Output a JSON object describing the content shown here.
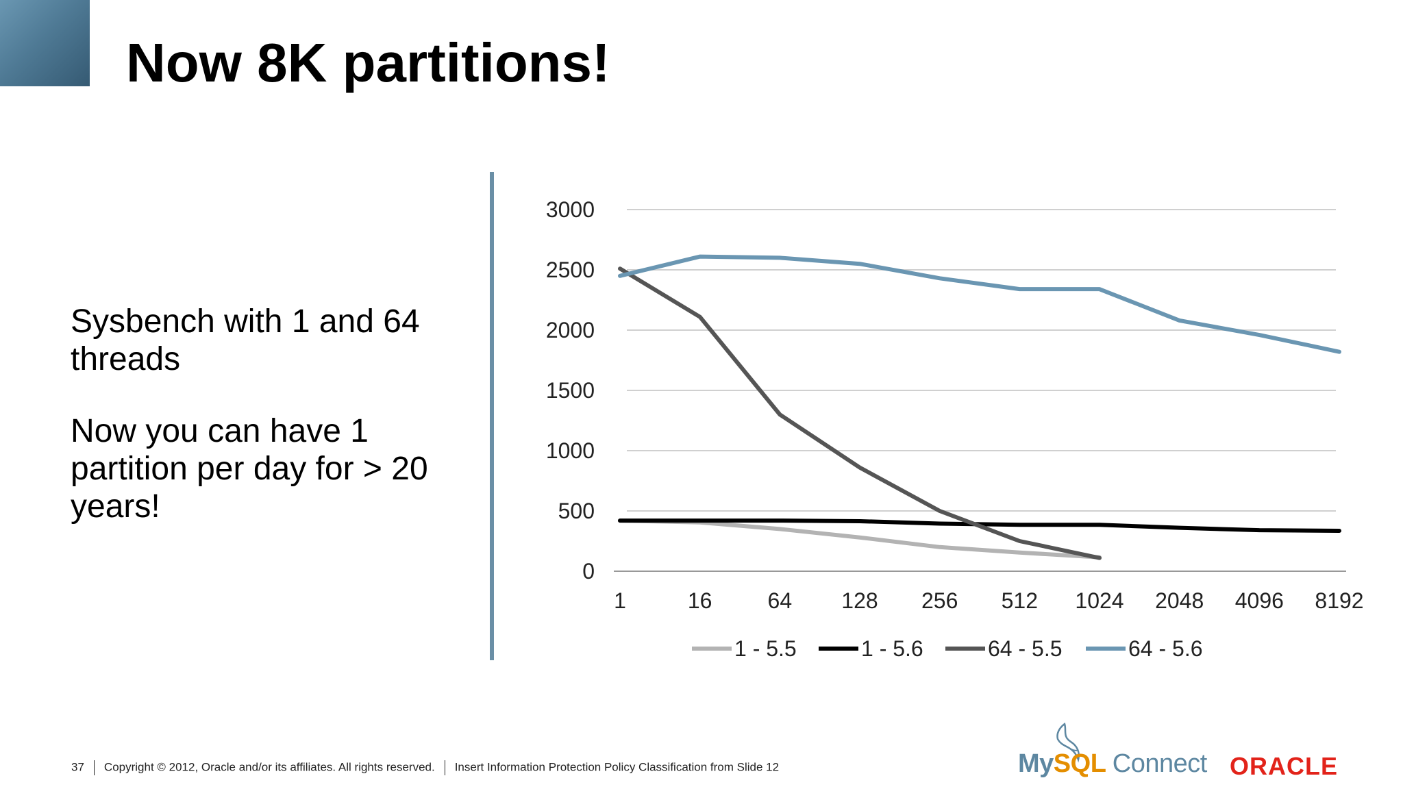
{
  "slide": {
    "title": "Now 8K partitions!",
    "bullets": [
      "Sysbench with 1 and 64 threads",
      "Now you can have 1 partition per day for > 20 years!"
    ]
  },
  "footer": {
    "page_number": "37",
    "copyright": "Copyright © 2012, Oracle and/or its affiliates. All rights reserved.",
    "classification": "Insert Information Protection Policy Classification from Slide 12"
  },
  "logos": {
    "mysql_prefix": "My",
    "mysql_sql": "SQL",
    "mysql_connect": "Connect",
    "oracle": "ORACLE",
    "mysql_color": "#5d87a1",
    "oracle_color": "#e2231a"
  },
  "chart_data": {
    "type": "line",
    "title": "",
    "xlabel": "",
    "ylabel": "",
    "categories": [
      "1",
      "16",
      "64",
      "128",
      "256",
      "512",
      "1024",
      "2048",
      "4096",
      "8192"
    ],
    "ylim": [
      0,
      3000
    ],
    "yticks": [
      "0",
      "500",
      "1000",
      "1500",
      "2000",
      "2500",
      "3000"
    ],
    "grid": true,
    "legend_position": "bottom",
    "series": [
      {
        "name": "1 - 5.5",
        "color": "#b3b3b3",
        "values": [
          420,
          405,
          350,
          280,
          200,
          155,
          115,
          null,
          null,
          null
        ]
      },
      {
        "name": "1 - 5.6",
        "color": "#000000",
        "values": [
          420,
          420,
          420,
          415,
          395,
          385,
          385,
          360,
          340,
          335
        ]
      },
      {
        "name": "64 - 5.5",
        "color": "#555555",
        "values": [
          2510,
          2110,
          1300,
          860,
          500,
          250,
          110,
          null,
          null,
          null
        ]
      },
      {
        "name": "64 - 5.6",
        "color": "#6a96b2",
        "values": [
          2450,
          2610,
          2600,
          2550,
          2430,
          2340,
          2340,
          2080,
          1960,
          1820
        ]
      }
    ]
  }
}
